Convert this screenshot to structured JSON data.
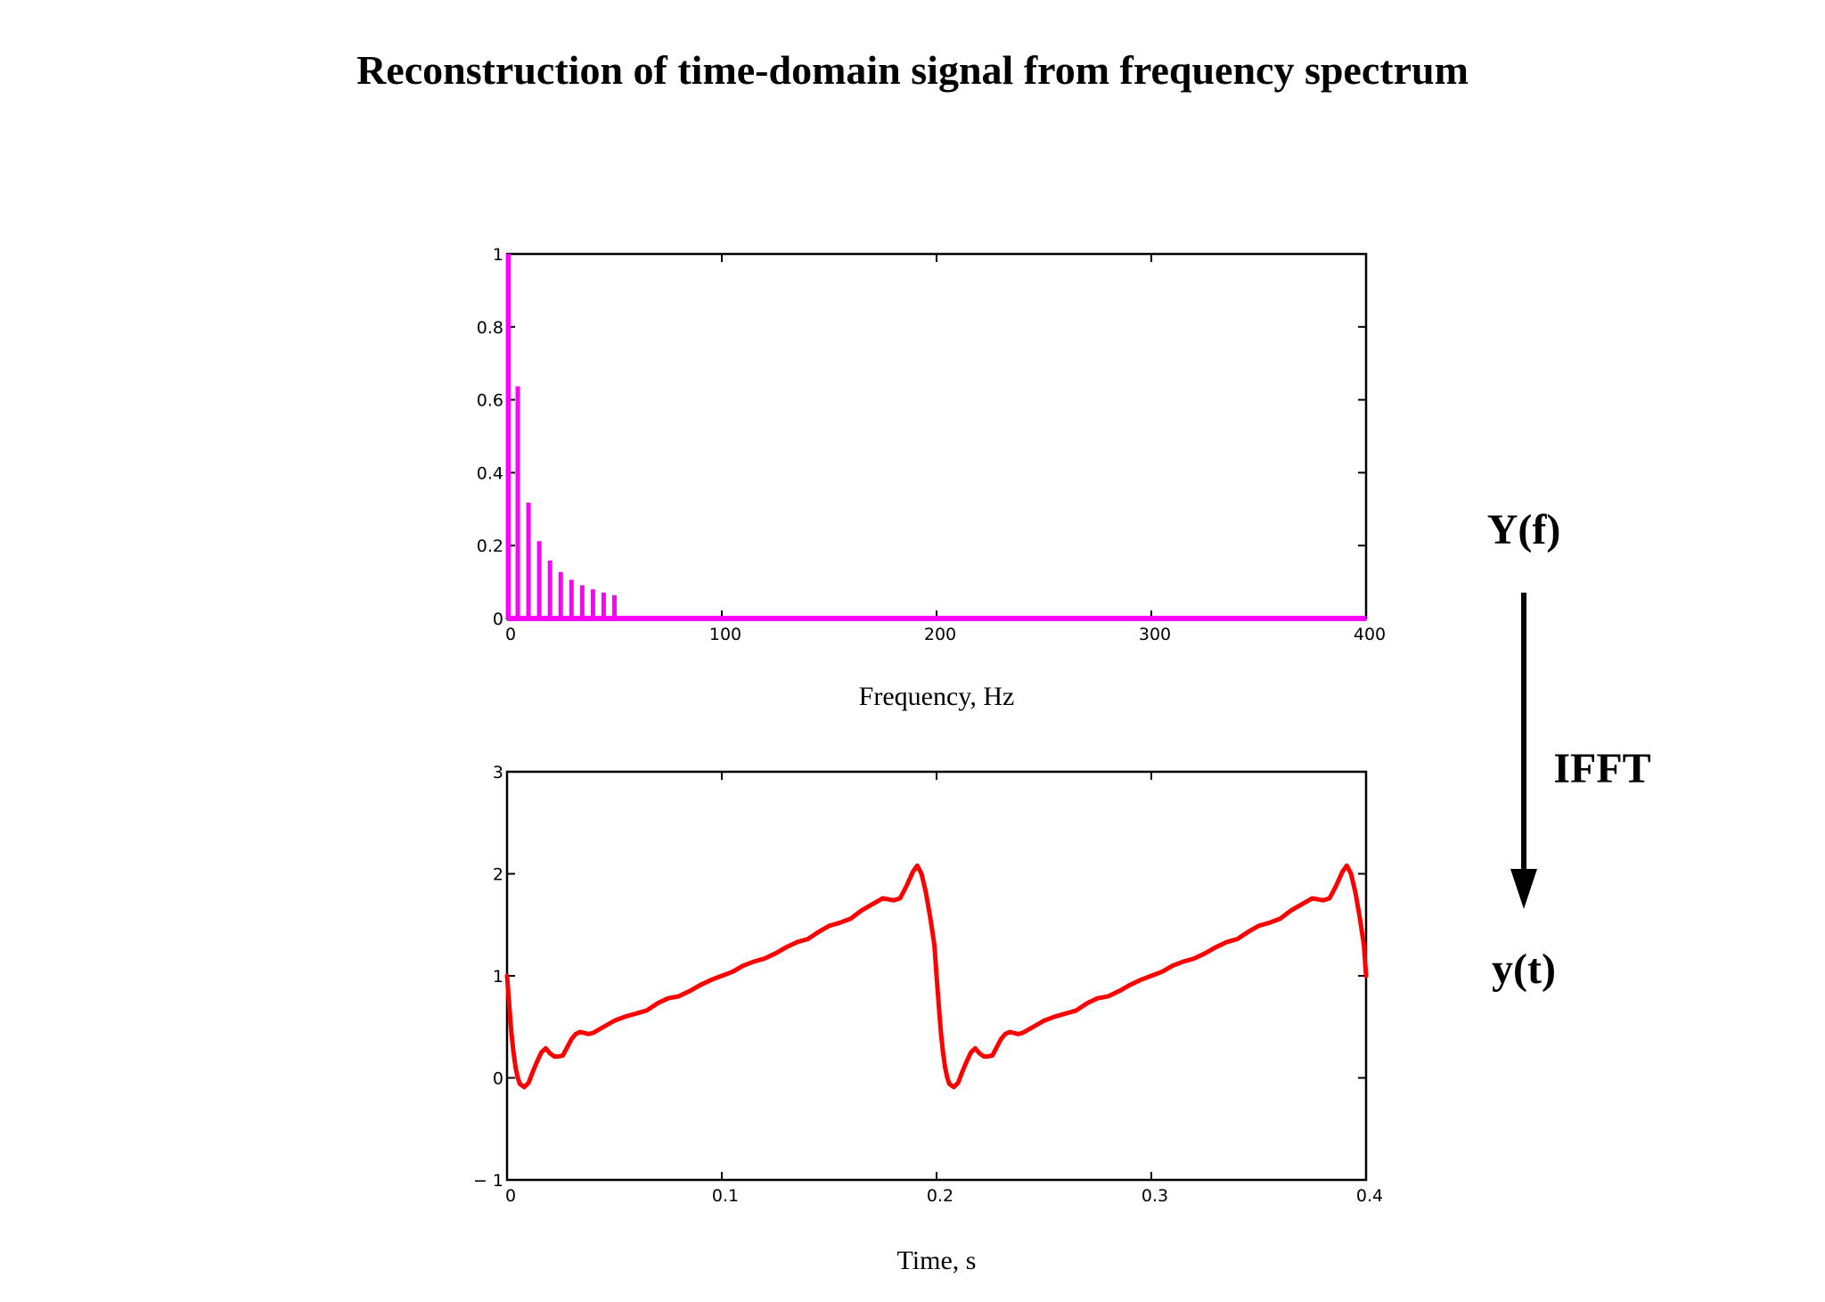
{
  "page_title": "Reconstruction of time-domain signal from frequency spectrum",
  "annotations": {
    "top_label": "Y(f)",
    "operation_label": "IFFT",
    "bottom_label": "y(t)"
  },
  "colors": {
    "spectrum": "#ff00ff",
    "signal": "#ff0000",
    "axes": "#000000",
    "background": "#ffffff"
  },
  "chart_data": [
    {
      "type": "bar",
      "subtype": "stem",
      "title": "",
      "xlabel": "Frequency, Hz",
      "ylabel": "",
      "xlim": [
        0,
        400
      ],
      "ylim": [
        0,
        1
      ],
      "xticks": [
        0,
        100,
        200,
        300,
        400
      ],
      "xtick_labels": [
        "0",
        "100",
        "200",
        "300",
        "400"
      ],
      "yticks": [
        0,
        0.2,
        0.4,
        0.6,
        0.8,
        1
      ],
      "ytick_labels": [
        "0",
        "0.2",
        "0.4",
        "0.6",
        "0.8",
        "1"
      ],
      "grid": false,
      "baseline": 0,
      "series": [
        {
          "x": [
            0,
            5,
            10,
            15,
            20,
            25,
            30,
            35,
            40,
            45,
            50
          ],
          "values": [
            1.0,
            0.637,
            0.318,
            0.212,
            0.159,
            0.127,
            0.106,
            0.091,
            0.08,
            0.071,
            0.064
          ]
        }
      ]
    },
    {
      "type": "line",
      "title": "",
      "xlabel": "Time, s",
      "ylabel": "",
      "xlim": [
        0,
        0.4
      ],
      "ylim": [
        -1,
        3
      ],
      "xticks": [
        0,
        0.1,
        0.2,
        0.3,
        0.4
      ],
      "xtick_labels": [
        "0",
        "0.1",
        "0.2",
        "0.3",
        "0.4"
      ],
      "yticks": [
        -1,
        0,
        1,
        2,
        3
      ],
      "ytick_labels": [
        "− 1",
        "0",
        "1",
        "2",
        "3"
      ],
      "grid": false,
      "series": [
        {
          "x": [
            0,
            0.001,
            0.002,
            0.003,
            0.004,
            0.005,
            0.006,
            0.008,
            0.01,
            0.012,
            0.014,
            0.016,
            0.018,
            0.02,
            0.022,
            0.024,
            0.026,
            0.028,
            0.03,
            0.032,
            0.034,
            0.036,
            0.038,
            0.04,
            0.045,
            0.05,
            0.055,
            0.06,
            0.065,
            0.07,
            0.075,
            0.08,
            0.085,
            0.09,
            0.095,
            0.1,
            0.105,
            0.11,
            0.115,
            0.12,
            0.125,
            0.13,
            0.135,
            0.14,
            0.145,
            0.15,
            0.155,
            0.16,
            0.165,
            0.17,
            0.175,
            0.18,
            0.183,
            0.186,
            0.189,
            0.191,
            0.193,
            0.195,
            0.197,
            0.199,
            0.2,
            0.201,
            0.202,
            0.203,
            0.204,
            0.205,
            0.206,
            0.208,
            0.21,
            0.212,
            0.214,
            0.216,
            0.218,
            0.22,
            0.222,
            0.224,
            0.226,
            0.228,
            0.23,
            0.232,
            0.234,
            0.236,
            0.238,
            0.24,
            0.245,
            0.25,
            0.255,
            0.26,
            0.265,
            0.27,
            0.275,
            0.28,
            0.285,
            0.29,
            0.295,
            0.3,
            0.305,
            0.31,
            0.315,
            0.32,
            0.325,
            0.33,
            0.335,
            0.34,
            0.345,
            0.35,
            0.355,
            0.36,
            0.365,
            0.37,
            0.375,
            0.38,
            0.383,
            0.386,
            0.389,
            0.391,
            0.393,
            0.395,
            0.397,
            0.399,
            0.4
          ],
          "y": [
            1.0,
            0.72,
            0.45,
            0.25,
            0.1,
            0.0,
            -0.06,
            -0.09,
            -0.05,
            0.06,
            0.16,
            0.25,
            0.29,
            0.24,
            0.21,
            0.21,
            0.22,
            0.3,
            0.38,
            0.43,
            0.45,
            0.44,
            0.43,
            0.44,
            0.5,
            0.56,
            0.6,
            0.63,
            0.66,
            0.73,
            0.78,
            0.8,
            0.85,
            0.91,
            0.96,
            1.0,
            1.04,
            1.1,
            1.14,
            1.17,
            1.22,
            1.28,
            1.33,
            1.36,
            1.43,
            1.49,
            1.52,
            1.56,
            1.64,
            1.7,
            1.76,
            1.74,
            1.76,
            1.88,
            2.02,
            2.08,
            2.0,
            1.82,
            1.58,
            1.3,
            1.0,
            0.72,
            0.45,
            0.25,
            0.1,
            0.0,
            -0.06,
            -0.09,
            -0.05,
            0.06,
            0.16,
            0.25,
            0.29,
            0.24,
            0.21,
            0.21,
            0.22,
            0.3,
            0.38,
            0.43,
            0.45,
            0.44,
            0.43,
            0.44,
            0.5,
            0.56,
            0.6,
            0.63,
            0.66,
            0.73,
            0.78,
            0.8,
            0.85,
            0.91,
            0.96,
            1.0,
            1.04,
            1.1,
            1.14,
            1.17,
            1.22,
            1.28,
            1.33,
            1.36,
            1.43,
            1.49,
            1.52,
            1.56,
            1.64,
            1.7,
            1.76,
            1.74,
            1.76,
            1.88,
            2.02,
            2.08,
            2.0,
            1.82,
            1.58,
            1.3,
            1.0
          ]
        }
      ]
    }
  ]
}
